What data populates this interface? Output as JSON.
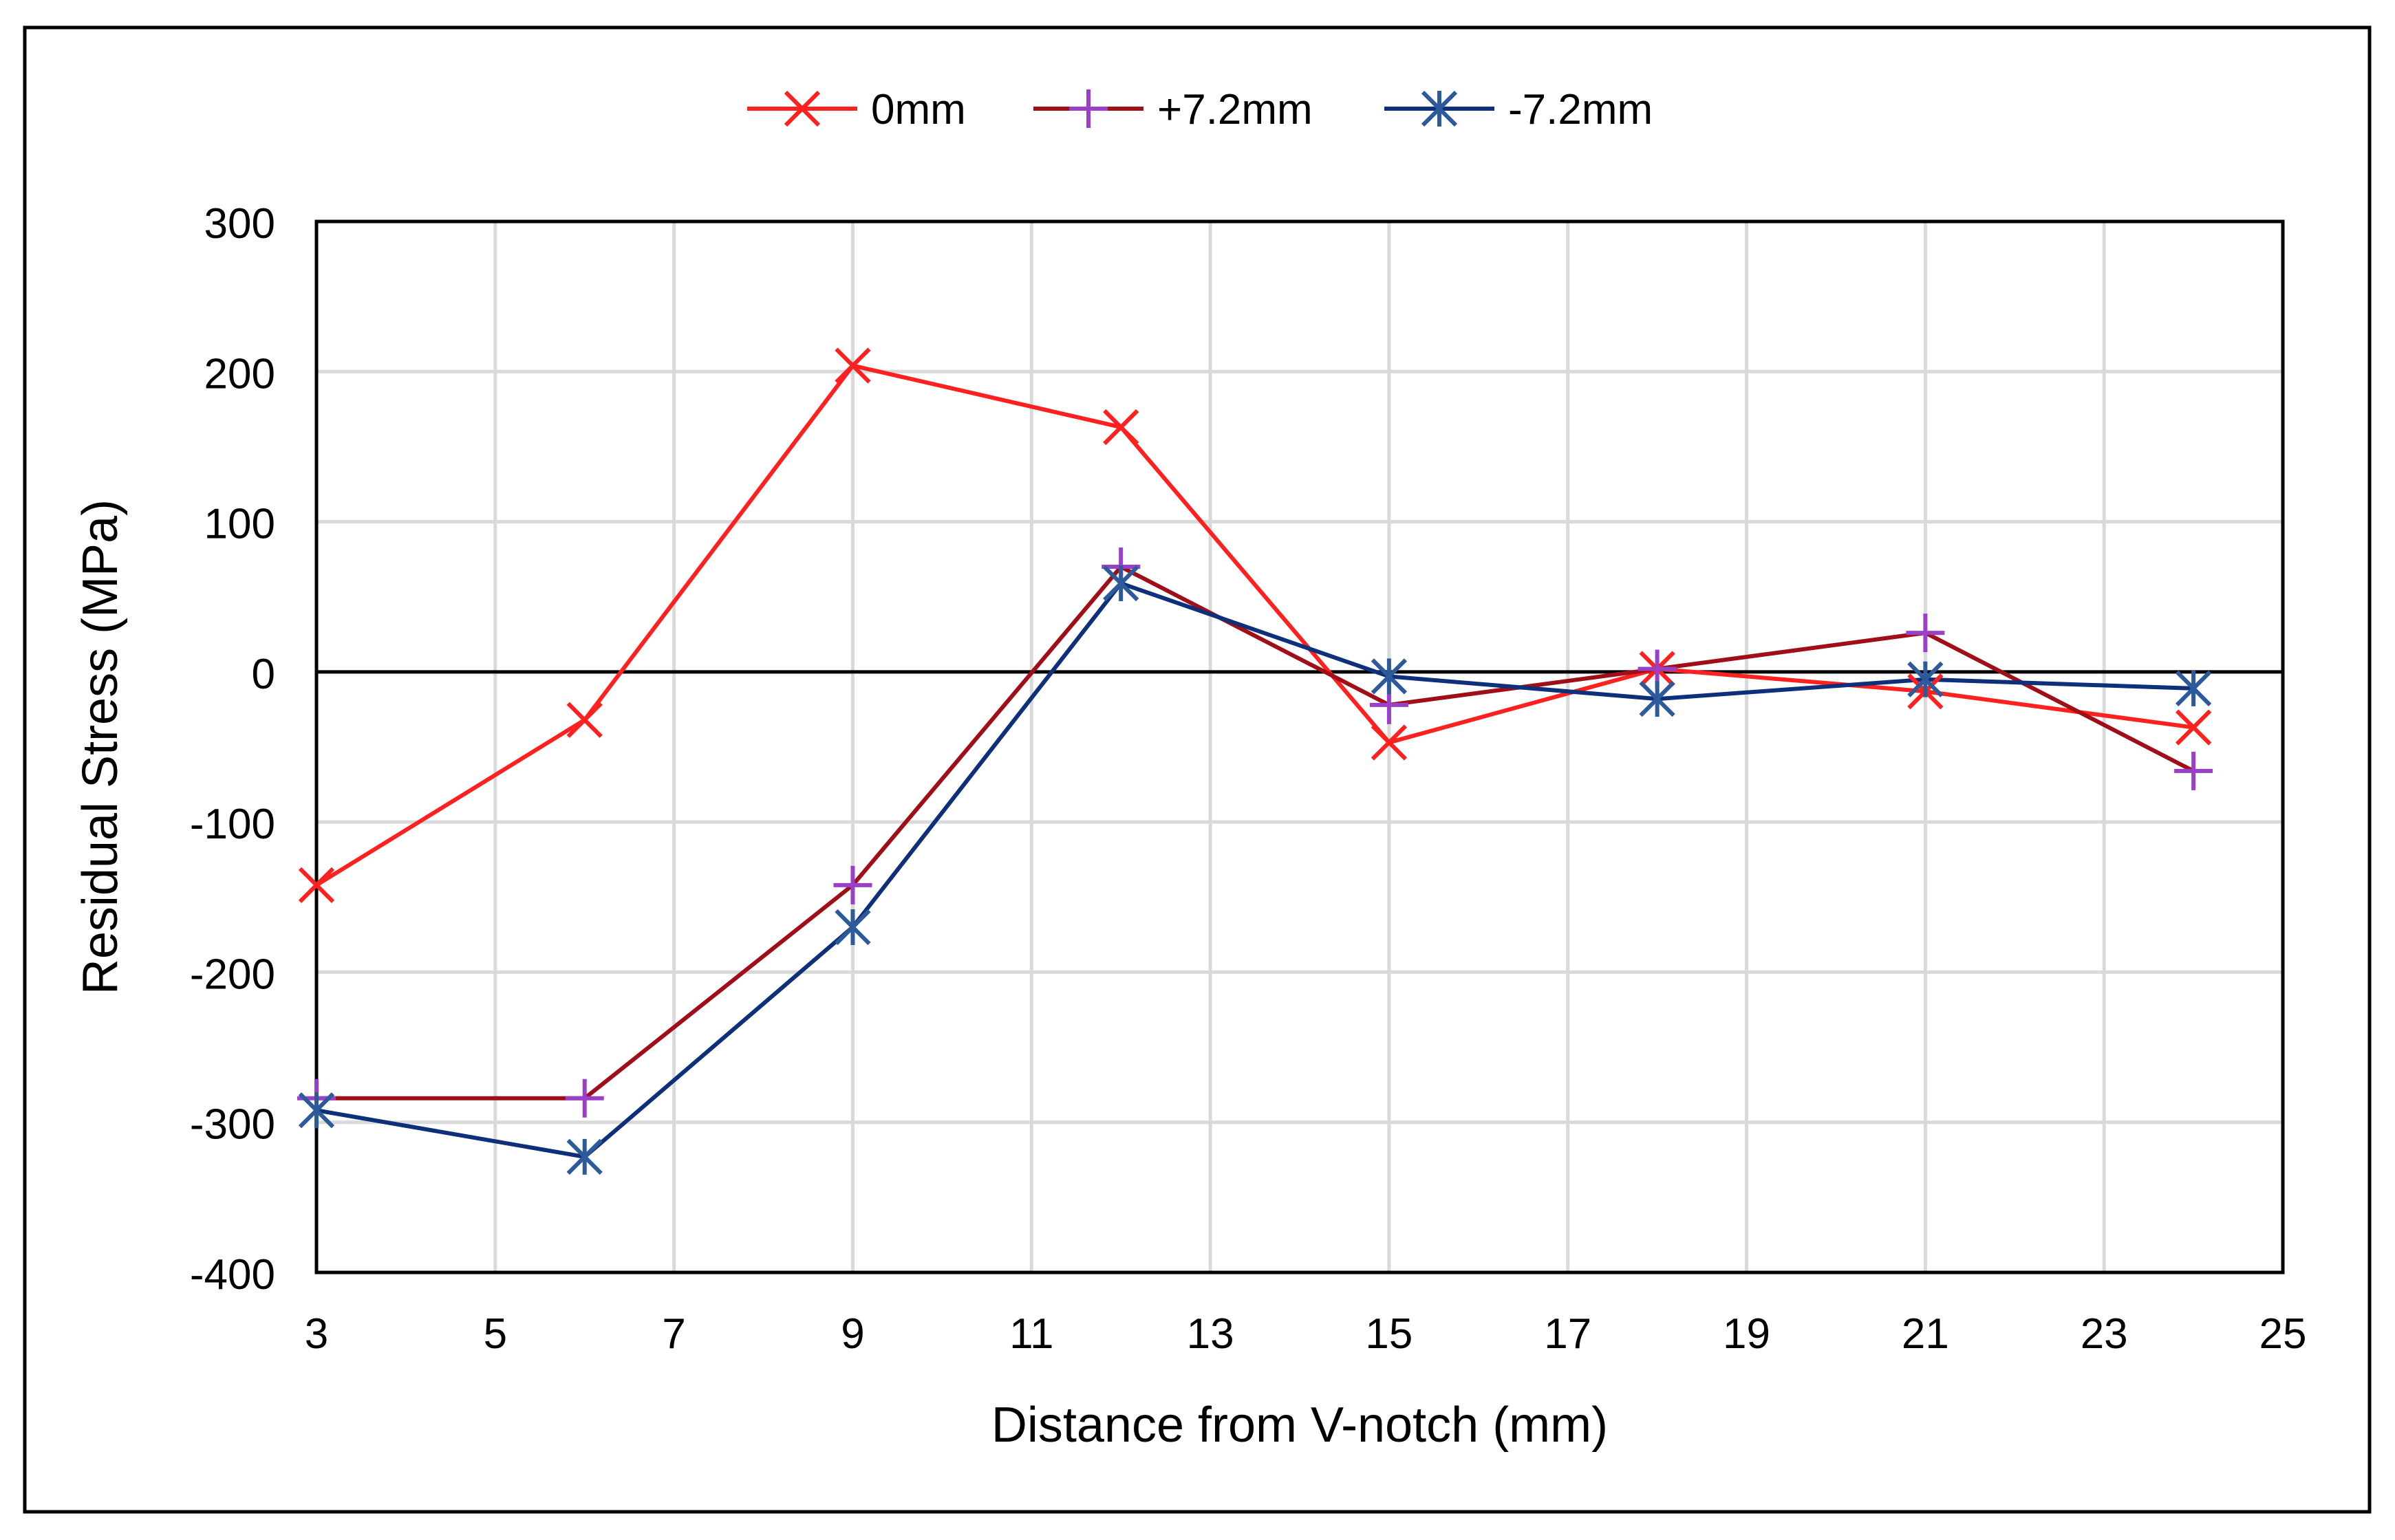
{
  "chart_data": {
    "type": "line",
    "title": "",
    "xlabel": "Distance from V-notch (mm)",
    "ylabel": "Residual Stress (MPa)",
    "xlim": [
      3,
      25
    ],
    "ylim": [
      -400,
      300
    ],
    "xticks": [
      3,
      5,
      7,
      9,
      11,
      13,
      15,
      17,
      19,
      21,
      23,
      25
    ],
    "yticks": [
      -400,
      -300,
      -200,
      -100,
      0,
      100,
      200,
      300
    ],
    "xtick_labels": [
      "3",
      "5",
      "7",
      "9",
      "11",
      "13",
      "15",
      "17",
      "19",
      "21",
      "23",
      "25"
    ],
    "ytick_labels": [
      "-400",
      "-300",
      "-200",
      "-100",
      "0",
      "100",
      "200",
      "300"
    ],
    "grid": true,
    "legend_position": "top-center",
    "x": [
      3,
      6,
      9,
      12,
      15,
      18,
      21,
      24
    ],
    "series": [
      {
        "name": "0mm",
        "color": "#ff2020",
        "marker": "x",
        "values": [
          -142,
          -32,
          204,
          163,
          -47,
          2,
          -13,
          -37
        ]
      },
      {
        "name": "+7.2mm",
        "color": "#a00f18",
        "marker_color": "#9a40c8",
        "marker": "plus",
        "values": [
          -284,
          -284,
          -142,
          70,
          -22,
          2,
          26,
          -66
        ]
      },
      {
        "name": "-7.2mm",
        "color": "#0e2f7a",
        "marker_color": "#2c5a9a",
        "marker": "asterisk",
        "values": [
          -292,
          -323,
          -170,
          59,
          -3,
          -18,
          -5,
          -11
        ]
      }
    ]
  }
}
